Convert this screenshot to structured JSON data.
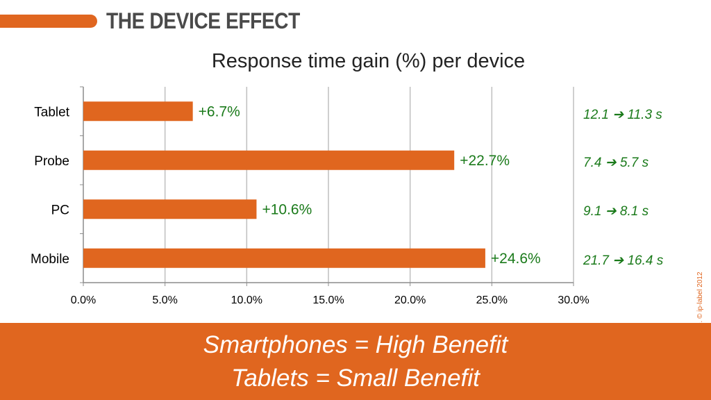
{
  "slide": {
    "title": "THE DEVICE EFFECT",
    "copyright": "e. © ip-label 2012"
  },
  "colors": {
    "accent": "#e0661f",
    "bar": "#e0661f",
    "label_green": "#1a7a1a",
    "grid": "#bfbfbf"
  },
  "chart_data": {
    "type": "bar",
    "orientation": "horizontal",
    "title": "Response time gain (%) per device",
    "categories": [
      "Tablet",
      "Probe",
      "PC",
      "Mobile"
    ],
    "values": [
      6.7,
      22.7,
      10.6,
      24.6
    ],
    "data_labels": [
      "+6.7%",
      "+22.7%",
      "+10.6%",
      "+24.6%"
    ],
    "xlim": [
      0,
      30
    ],
    "xticks": [
      0,
      5,
      10,
      15,
      20,
      25,
      30
    ],
    "xtick_labels": [
      "0.0%",
      "5.0%",
      "10.0%",
      "15.0%",
      "20.0%",
      "25.0%",
      "30.0%"
    ],
    "grid": true,
    "xlabel": "",
    "ylabel": ""
  },
  "response_times": [
    {
      "before": "12.1",
      "after": "11.3 s"
    },
    {
      "before": "7.4",
      "after": "5.7 s"
    },
    {
      "before": "9.1",
      "after": "8.1 s"
    },
    {
      "before": "21.7",
      "after": "16.4 s"
    }
  ],
  "arrow_glyph": "➔",
  "banner": {
    "line1": "Smartphones = High Benefit",
    "line2": "Tablets = Small Benefit"
  }
}
